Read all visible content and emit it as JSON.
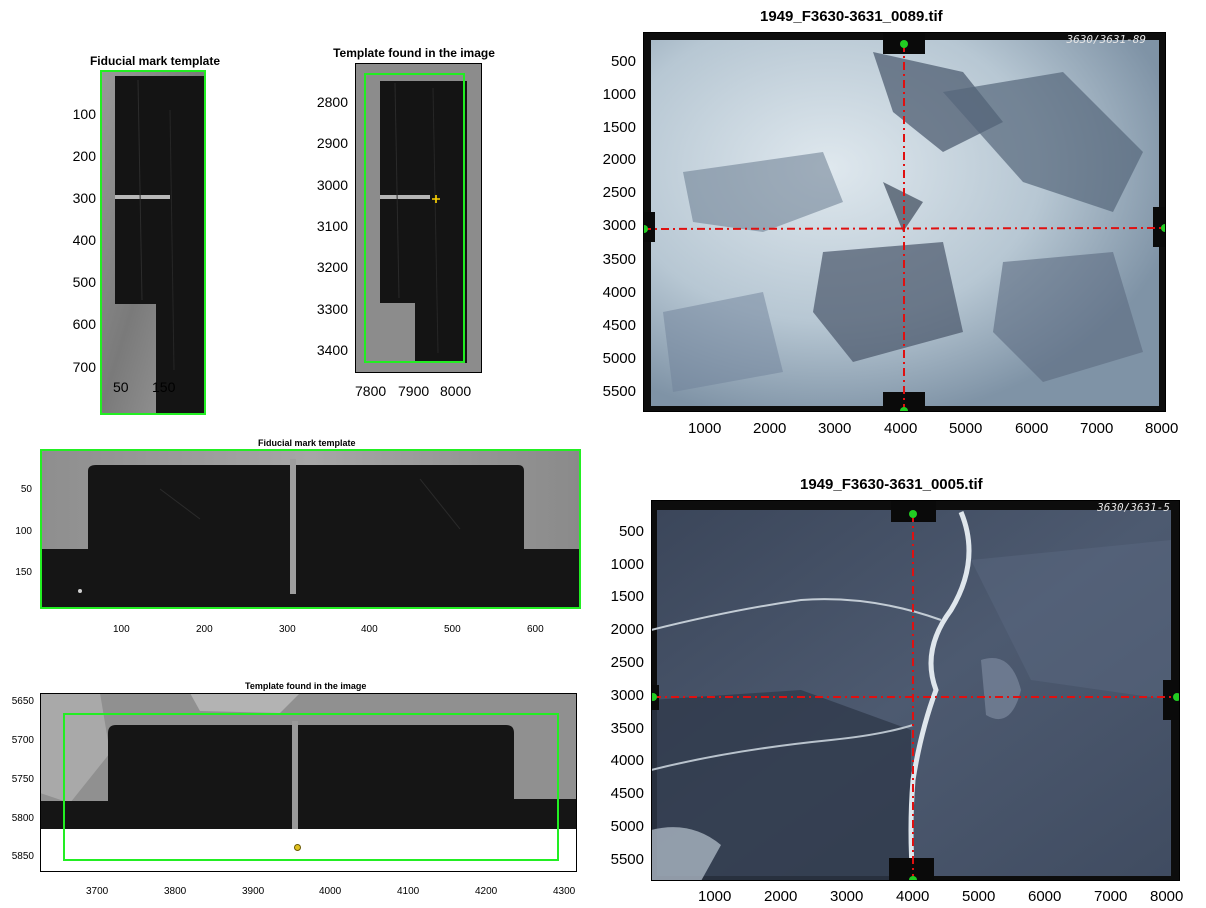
{
  "colors": {
    "green_box": "#22ee22",
    "red_crosshair": "#e01010",
    "green_marker": "#22cc22",
    "yellow_marker": "#ffd400",
    "mark_black": "#141414",
    "photo_grey": "#8a8a8a",
    "aerial_light": "#c4d3dc",
    "aerial_dark": "#3a4658"
  },
  "panel_top_left_a": {
    "title": "Fiducial mark template",
    "y_ticks": [
      "100",
      "200",
      "300",
      "400",
      "500",
      "600",
      "700"
    ],
    "x_ticks": [
      "50",
      "150"
    ]
  },
  "panel_top_left_b": {
    "title": "Template found in the image",
    "y_ticks": [
      "2800",
      "2900",
      "3000",
      "3100",
      "3200",
      "3300",
      "3400"
    ],
    "x_ticks": [
      "7800",
      "7900",
      "8000"
    ]
  },
  "panel_top_right": {
    "title": "1949_F3630-3631_0089.tif",
    "corner_annotation": "3630/3631-89",
    "y_ticks": [
      "500",
      "1000",
      "1500",
      "2000",
      "2500",
      "3000",
      "3500",
      "4000",
      "4500",
      "5000",
      "5500"
    ],
    "x_ticks": [
      "1000",
      "2000",
      "3000",
      "4000",
      "5000",
      "6000",
      "7000",
      "8000"
    ]
  },
  "panel_mid_left": {
    "title": "Fiducial mark template",
    "y_ticks": [
      "50",
      "100",
      "150"
    ],
    "x_ticks": [
      "100",
      "200",
      "300",
      "400",
      "500",
      "600"
    ]
  },
  "panel_bottom_left": {
    "title": "Template found in the image",
    "y_ticks": [
      "5650",
      "5700",
      "5750",
      "5800",
      "5850"
    ],
    "x_ticks": [
      "3700",
      "3800",
      "3900",
      "4000",
      "4100",
      "4200",
      "4300"
    ]
  },
  "panel_bottom_right": {
    "title": "1949_F3630-3631_0005.tif",
    "corner_annotation": "3630/3631-5",
    "y_ticks": [
      "500",
      "1000",
      "1500",
      "2000",
      "2500",
      "3000",
      "3500",
      "4000",
      "4500",
      "5000",
      "5500"
    ],
    "x_ticks": [
      "1000",
      "2000",
      "3000",
      "4000",
      "5000",
      "6000",
      "7000",
      "8000"
    ]
  }
}
